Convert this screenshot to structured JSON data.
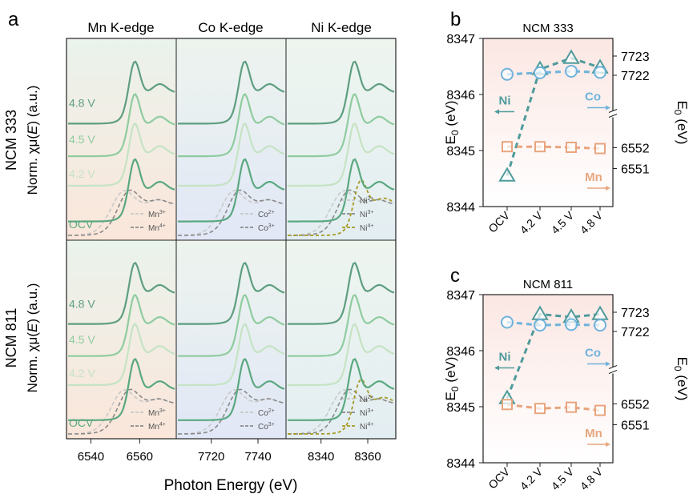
{
  "panel_labels": {
    "a": "a",
    "b": "b",
    "c": "c"
  },
  "panel_a": {
    "columns": [
      "Mn K-edge",
      "Co K-edge",
      "Ni K-edge"
    ],
    "rows": [
      "NCM 333",
      "NCM 811"
    ],
    "ylabel_prefix": "Norm.",
    "ylabel_chi": "χμ(",
    "ylabel_E": "E",
    "ylabel_suffix": ") (a.u.)",
    "xlabel": "Photon Energy (eV)",
    "voltages": [
      "4.8 V",
      "4.5 V",
      "4.2 V",
      "OCV"
    ],
    "legends": {
      "Mn": [
        "Mn3+",
        "Mn4+"
      ],
      "Co": [
        "Co2+",
        "Co3+"
      ],
      "Ni": [
        "Ni2+",
        "Ni3+",
        "Ni4+"
      ]
    },
    "colors": {
      "ocv": "#5aa880",
      "v42": "#c5e3c4",
      "v45": "#8fcc9f",
      "v48": "#5e9e80",
      "ref_light": "#c8c8c8",
      "ref_dark": "#8a8a8a",
      "ref_ni4": "#a79a22",
      "bg_mn": "#f9ece4",
      "bg_co": "#e7ecf6",
      "bg_ni": "#e9f1f4"
    }
  },
  "chart_data": [
    {
      "type": "line",
      "panel": "a",
      "series": [
        {
          "edge": "Mn",
          "x_ticks": [
            6540,
            6560
          ],
          "xlim": [
            6530,
            6575
          ]
        },
        {
          "edge": "Co",
          "x_ticks": [
            7720,
            7740
          ],
          "xlim": [
            7705,
            7752
          ]
        },
        {
          "edge": "Ni",
          "x_ticks": [
            8340,
            8360
          ],
          "xlim": [
            8325,
            8372
          ]
        }
      ],
      "xlabel": "Photon Energy (eV)",
      "grid": false
    },
    {
      "type": "scatter",
      "panel": "b",
      "title": "NCM 333",
      "categories": [
        "OCV",
        "4.2 V",
        "4.5 V",
        "4.8 V"
      ],
      "ylabel_left": "E0 (eV)",
      "ylabel_right": "E0 (eV)",
      "ylim_left": [
        8344,
        8347
      ],
      "left_ticks": [
        8344,
        8345,
        8346,
        8347
      ],
      "right_ticks_top": [
        7722,
        7723
      ],
      "right_ticks_bottom": [
        6551,
        6552
      ],
      "series": [
        {
          "name": "Ni",
          "axis": "left",
          "marker": "triangle",
          "color": "#4f9b9b",
          "values": [
            8344.55,
            8346.45,
            8346.65,
            8346.48
          ]
        },
        {
          "name": "Co",
          "axis": "right-top",
          "marker": "circle",
          "color": "#6fb3dc",
          "values": [
            7722.05,
            7722.13,
            7722.21,
            7722.15
          ]
        },
        {
          "name": "Mn",
          "axis": "right-bottom",
          "marker": "square",
          "color": "#e8a57e",
          "values": [
            6552.05,
            6552.05,
            6552.02,
            6551.96
          ]
        }
      ]
    },
    {
      "type": "scatter",
      "panel": "c",
      "title": "NCM 811",
      "categories": [
        "OCV",
        "4.2 V",
        "4.5 V",
        "4.8 V"
      ],
      "ylabel_left": "E0 (eV)",
      "ylabel_right": "E0 (eV)",
      "ylim_left": [
        8344,
        8347
      ],
      "left_ticks": [
        8344,
        8345,
        8346,
        8347
      ],
      "right_ticks_top": [
        7722,
        7723
      ],
      "right_ticks_bottom": [
        6551,
        6552
      ],
      "series": [
        {
          "name": "Ni",
          "axis": "left",
          "marker": "triangle",
          "color": "#4f9b9b",
          "values": [
            8345.15,
            8346.65,
            8346.6,
            8346.65
          ]
        },
        {
          "name": "Co",
          "axis": "right-top",
          "marker": "circle",
          "color": "#6fb3dc",
          "values": [
            7722.48,
            7722.33,
            7722.36,
            7722.33
          ]
        },
        {
          "name": "Mn",
          "axis": "right-bottom",
          "marker": "square",
          "color": "#e8a57e",
          "values": [
            6551.97,
            6551.78,
            6551.84,
            6551.69
          ]
        }
      ]
    }
  ]
}
